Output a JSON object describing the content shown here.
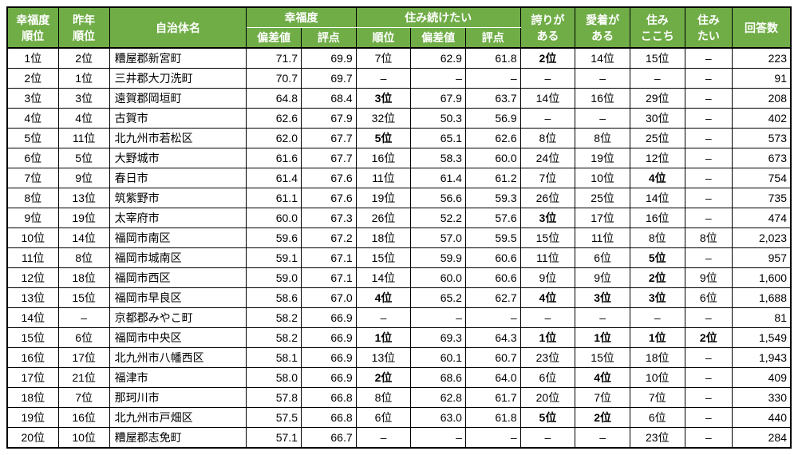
{
  "headers": {
    "rank": "幸福度\n順位",
    "prev": "昨年\n順位",
    "name": "自治体名",
    "happy_group": "幸福度",
    "happy_dev": "偏差値",
    "happy_score": "評点",
    "stay_group": "住み続けたい",
    "stay_rank": "順位",
    "stay_dev": "偏差値",
    "stay_score": "評点",
    "pride": "誇りが\nある",
    "attach": "愛着が\nある",
    "live": "住み\nここち",
    "want": "住み\nたい",
    "resp": "回答数"
  },
  "bold_top5": [
    "1位",
    "2位",
    "3位",
    "4位",
    "5位"
  ],
  "rows": [
    {
      "rank": "1位",
      "prev": "2位",
      "name": "糟屋郡新宮町",
      "dev": "71.7",
      "score": "69.9",
      "srank": "7位",
      "sdev": "62.9",
      "sscore": "61.8",
      "pride": "2位",
      "attach": "14位",
      "live": "15位",
      "want": "–",
      "resp": "223"
    },
    {
      "rank": "2位",
      "prev": "1位",
      "name": "三井郡大刀洗町",
      "dev": "70.7",
      "score": "69.7",
      "srank": "–",
      "sdev": "–",
      "sscore": "–",
      "pride": "–",
      "attach": "–",
      "live": "–",
      "want": "–",
      "resp": "91"
    },
    {
      "rank": "3位",
      "prev": "3位",
      "name": "遠賀郡岡垣町",
      "dev": "64.8",
      "score": "68.4",
      "srank": "3位",
      "sdev": "67.9",
      "sscore": "63.7",
      "pride": "14位",
      "attach": "16位",
      "live": "29位",
      "want": "–",
      "resp": "208"
    },
    {
      "rank": "4位",
      "prev": "4位",
      "name": "古賀市",
      "dev": "62.6",
      "score": "67.9",
      "srank": "32位",
      "sdev": "50.3",
      "sscore": "56.9",
      "pride": "–",
      "attach": "–",
      "live": "30位",
      "want": "–",
      "resp": "402"
    },
    {
      "rank": "5位",
      "prev": "11位",
      "name": "北九州市若松区",
      "dev": "62.0",
      "score": "67.7",
      "srank": "5位",
      "sdev": "65.1",
      "sscore": "62.6",
      "pride": "8位",
      "attach": "8位",
      "live": "25位",
      "want": "–",
      "resp": "573"
    },
    {
      "rank": "6位",
      "prev": "5位",
      "name": "大野城市",
      "dev": "61.6",
      "score": "67.7",
      "srank": "16位",
      "sdev": "58.3",
      "sscore": "60.0",
      "pride": "24位",
      "attach": "19位",
      "live": "12位",
      "want": "–",
      "resp": "673"
    },
    {
      "rank": "7位",
      "prev": "9位",
      "name": "春日市",
      "dev": "61.4",
      "score": "67.6",
      "srank": "11位",
      "sdev": "61.4",
      "sscore": "61.2",
      "pride": "7位",
      "attach": "10位",
      "live": "4位",
      "want": "–",
      "resp": "754"
    },
    {
      "rank": "8位",
      "prev": "13位",
      "name": "筑紫野市",
      "dev": "61.1",
      "score": "67.6",
      "srank": "19位",
      "sdev": "56.6",
      "sscore": "59.3",
      "pride": "26位",
      "attach": "25位",
      "live": "14位",
      "want": "–",
      "resp": "735"
    },
    {
      "rank": "9位",
      "prev": "19位",
      "name": "太宰府市",
      "dev": "60.0",
      "score": "67.3",
      "srank": "26位",
      "sdev": "52.2",
      "sscore": "57.6",
      "pride": "3位",
      "attach": "17位",
      "live": "16位",
      "want": "–",
      "resp": "474"
    },
    {
      "rank": "10位",
      "prev": "14位",
      "name": "福岡市南区",
      "dev": "59.6",
      "score": "67.2",
      "srank": "18位",
      "sdev": "57.0",
      "sscore": "59.5",
      "pride": "15位",
      "attach": "11位",
      "live": "8位",
      "want": "8位",
      "resp": "2,023"
    },
    {
      "rank": "11位",
      "prev": "8位",
      "name": "福岡市城南区",
      "dev": "59.1",
      "score": "67.1",
      "srank": "15位",
      "sdev": "59.9",
      "sscore": "60.6",
      "pride": "11位",
      "attach": "6位",
      "live": "5位",
      "want": "–",
      "resp": "957"
    },
    {
      "rank": "12位",
      "prev": "18位",
      "name": "福岡市西区",
      "dev": "59.0",
      "score": "67.1",
      "srank": "14位",
      "sdev": "60.0",
      "sscore": "60.6",
      "pride": "9位",
      "attach": "9位",
      "live": "2位",
      "want": "9位",
      "resp": "1,600"
    },
    {
      "rank": "13位",
      "prev": "15位",
      "name": "福岡市早良区",
      "dev": "58.6",
      "score": "67.0",
      "srank": "4位",
      "sdev": "65.2",
      "sscore": "62.7",
      "pride": "4位",
      "attach": "3位",
      "live": "3位",
      "want": "6位",
      "resp": "1,688"
    },
    {
      "rank": "14位",
      "prev": "–",
      "name": "京都郡みやこ町",
      "dev": "58.2",
      "score": "66.9",
      "srank": "–",
      "sdev": "–",
      "sscore": "–",
      "pride": "–",
      "attach": "–",
      "live": "–",
      "want": "–",
      "resp": "81"
    },
    {
      "rank": "15位",
      "prev": "6位",
      "name": "福岡市中央区",
      "dev": "58.2",
      "score": "66.9",
      "srank": "1位",
      "sdev": "69.3",
      "sscore": "64.3",
      "pride": "1位",
      "attach": "1位",
      "live": "1位",
      "want": "2位",
      "resp": "1,549"
    },
    {
      "rank": "16位",
      "prev": "17位",
      "name": "北九州市八幡西区",
      "dev": "58.1",
      "score": "66.9",
      "srank": "13位",
      "sdev": "60.1",
      "sscore": "60.7",
      "pride": "23位",
      "attach": "15位",
      "live": "18位",
      "want": "–",
      "resp": "1,943"
    },
    {
      "rank": "17位",
      "prev": "21位",
      "name": "福津市",
      "dev": "58.0",
      "score": "66.9",
      "srank": "2位",
      "sdev": "68.6",
      "sscore": "64.0",
      "pride": "6位",
      "attach": "4位",
      "live": "10位",
      "want": "–",
      "resp": "409"
    },
    {
      "rank": "18位",
      "prev": "7位",
      "name": "那珂川市",
      "dev": "57.8",
      "score": "66.8",
      "srank": "8位",
      "sdev": "62.8",
      "sscore": "61.7",
      "pride": "20位",
      "attach": "7位",
      "live": "7位",
      "want": "–",
      "resp": "330"
    },
    {
      "rank": "19位",
      "prev": "16位",
      "name": "北九州市戸畑区",
      "dev": "57.5",
      "score": "66.8",
      "srank": "6位",
      "sdev": "63.0",
      "sscore": "61.8",
      "pride": "5位",
      "attach": "2位",
      "live": "6位",
      "want": "–",
      "resp": "440"
    },
    {
      "rank": "20位",
      "prev": "10位",
      "name": "糟屋郡志免町",
      "dev": "57.1",
      "score": "66.7",
      "srank": "–",
      "sdev": "–",
      "sscore": "–",
      "pride": "–",
      "attach": "–",
      "live": "23位",
      "want": "–",
      "resp": "284"
    }
  ]
}
